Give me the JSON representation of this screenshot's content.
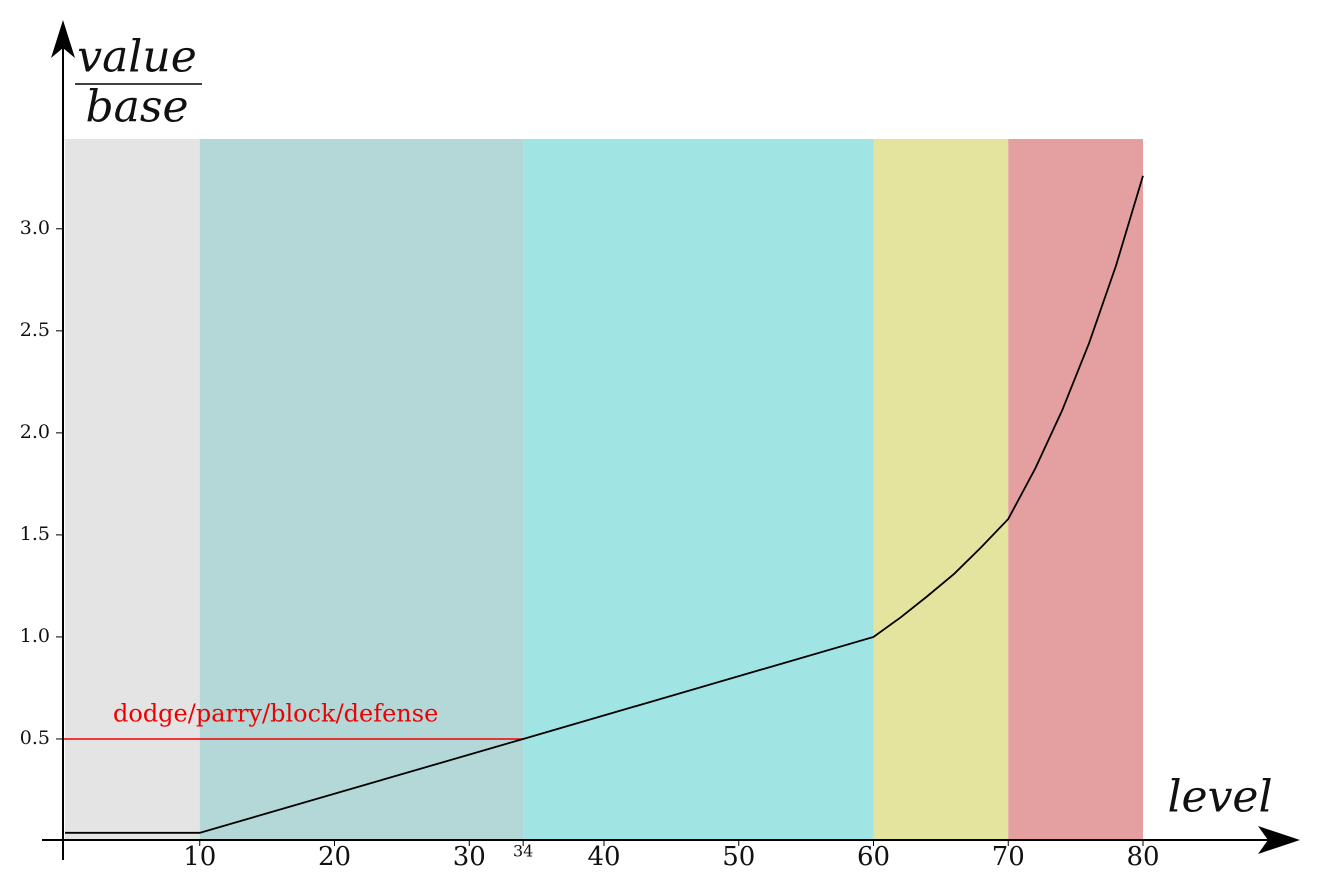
{
  "chart_data": {
    "type": "line",
    "y_label_numerator": "value",
    "y_label_denominator": "base",
    "x_label": "level",
    "x": [
      0,
      10,
      34,
      60,
      62,
      64,
      66,
      68,
      70,
      72,
      74,
      76,
      78,
      80
    ],
    "series": [
      {
        "color": "#000000",
        "values": [
          0.04,
          0.04,
          0.5,
          1.0,
          1.095,
          1.2,
          1.31,
          1.44,
          1.578,
          1.825,
          2.11,
          2.44,
          2.82,
          3.26
        ]
      }
    ],
    "xlim": [
      0,
      80
    ],
    "ylim": [
      0,
      3.44
    ],
    "xticks": [
      10,
      20,
      30,
      34,
      40,
      50,
      60,
      70,
      80
    ],
    "yticks": [
      0.5,
      {
        "value": 1,
        "label": "1.0"
      },
      1.5,
      {
        "value": 2,
        "label": "2.0"
      },
      2.5,
      {
        "value": 3,
        "label": "3.0"
      }
    ],
    "bands": [
      {
        "from": 0,
        "to": 10,
        "color": "#e4e4e4"
      },
      {
        "from": 10,
        "to": 34,
        "color": "#b4d8d8"
      },
      {
        "from": 34,
        "to": 60,
        "color": "#a0e4e4"
      },
      {
        "from": 60,
        "to": 70,
        "color": "#e4e49f"
      },
      {
        "from": 70,
        "to": 80,
        "color": "#e4a0a0"
      }
    ],
    "reference": {
      "label": "dodge/parry/block/defense",
      "y": 0.5,
      "x": 34,
      "color": "#ee0000"
    }
  }
}
